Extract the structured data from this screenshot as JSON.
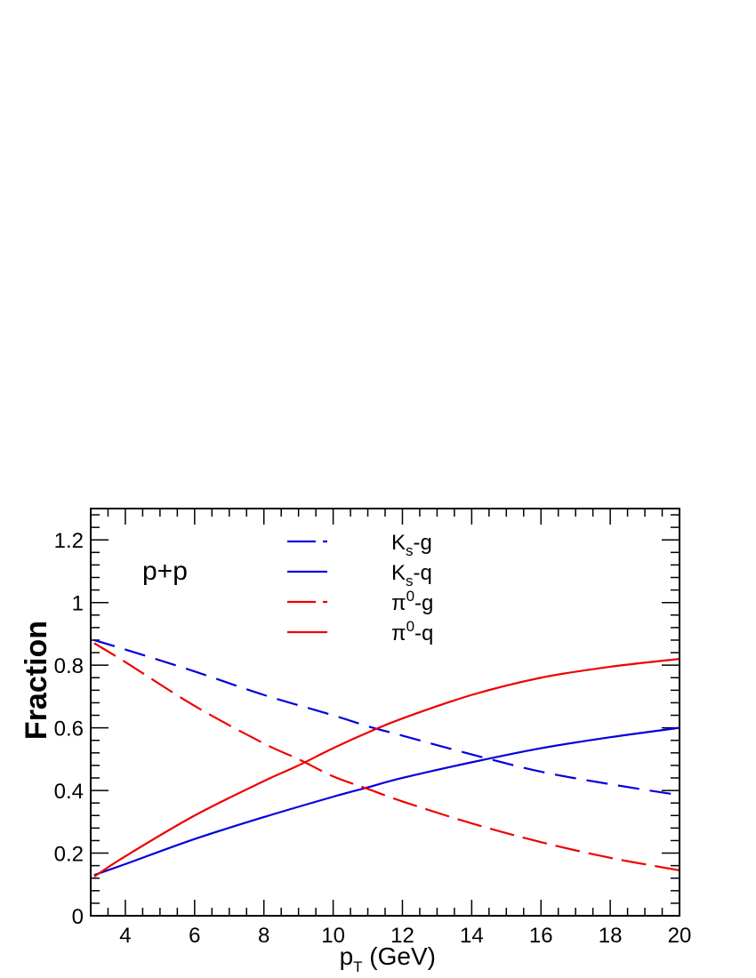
{
  "chart_data": {
    "type": "line",
    "title": "",
    "annotation": "p+p",
    "xlabel": {
      "main": "p",
      "sub": "T",
      "suffix": " (GeV)"
    },
    "ylabel": "Fraction",
    "xlim": [
      3,
      20
    ],
    "ylim": [
      0,
      1.3
    ],
    "xticks": [
      4,
      6,
      8,
      10,
      12,
      14,
      16,
      18,
      20
    ],
    "yticks": [
      0,
      0.2,
      0.4,
      0.6,
      0.8,
      1,
      1.2
    ],
    "xtick_labels": [
      "4",
      "6",
      "8",
      "10",
      "12",
      "14",
      "16",
      "18",
      "20"
    ],
    "ytick_labels": [
      "0",
      "0.2",
      "0.4",
      "0.6",
      "0.8",
      "1",
      "1.2"
    ],
    "grid": false,
    "legend_position": "top-center",
    "series": [
      {
        "name": "Ks-g",
        "label": {
          "main": "K",
          "sub": "s",
          "sup": "",
          "suffix": "-g"
        },
        "color": "#0000dd",
        "style": "dashed",
        "x": [
          3.1,
          4,
          6,
          8,
          10,
          11,
          12,
          14,
          16,
          18,
          20
        ],
        "y": [
          0.88,
          0.85,
          0.78,
          0.705,
          0.64,
          0.605,
          0.575,
          0.515,
          0.46,
          0.42,
          0.385
        ]
      },
      {
        "name": "Ks-q",
        "label": {
          "main": "K",
          "sub": "s",
          "sup": "",
          "suffix": "-q"
        },
        "color": "#0000dd",
        "style": "solid",
        "x": [
          3.1,
          4,
          6,
          8,
          10,
          11,
          12,
          14,
          16,
          18,
          20
        ],
        "y": [
          0.13,
          0.165,
          0.245,
          0.315,
          0.38,
          0.41,
          0.44,
          0.49,
          0.535,
          0.57,
          0.6
        ]
      },
      {
        "name": "π0-g",
        "label": {
          "main": "π",
          "sub": "",
          "sup": "0",
          "suffix": "-g"
        },
        "color": "#ee0000",
        "style": "dashed",
        "x": [
          3.1,
          4,
          6,
          8,
          9,
          10,
          11,
          12,
          14,
          16,
          18,
          20
        ],
        "y": [
          0.87,
          0.81,
          0.67,
          0.55,
          0.5,
          0.445,
          0.405,
          0.365,
          0.295,
          0.235,
          0.185,
          0.145
        ]
      },
      {
        "name": "π0-q",
        "label": {
          "main": "π",
          "sub": "",
          "sup": "0",
          "suffix": "-q"
        },
        "color": "#ee0000",
        "style": "solid",
        "x": [
          3.1,
          4,
          6,
          8,
          9,
          10,
          11,
          12,
          14,
          16,
          18,
          20
        ],
        "y": [
          0.125,
          0.19,
          0.32,
          0.43,
          0.48,
          0.535,
          0.585,
          0.63,
          0.705,
          0.76,
          0.795,
          0.82
        ]
      }
    ]
  }
}
